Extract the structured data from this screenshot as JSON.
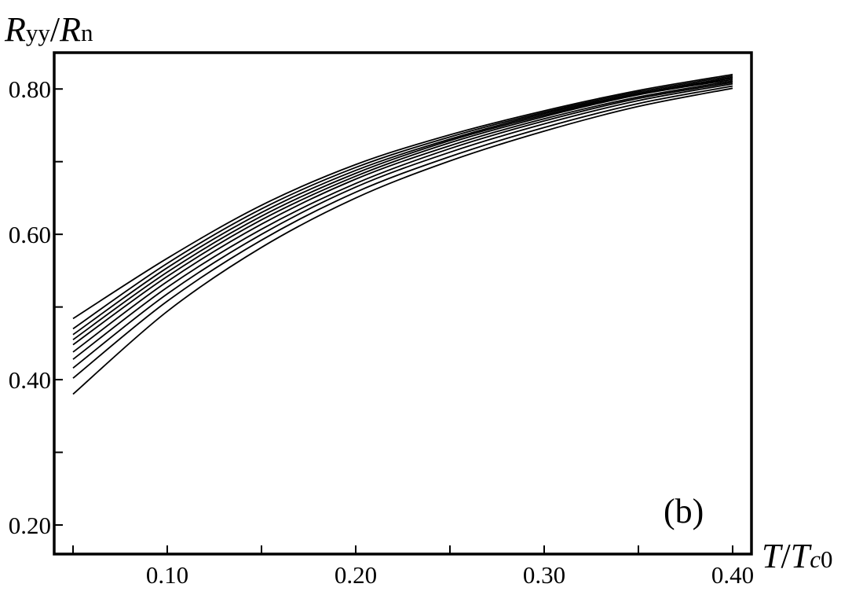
{
  "chart_data": {
    "type": "line",
    "title": "",
    "ylabel_parts": {
      "r1": "R",
      "s1": "yy",
      "slash": "/",
      "r2": "R",
      "s2": "n"
    },
    "xlabel_parts": {
      "t": "T",
      "slash": "/",
      "tc": "T",
      "sub_c": "c",
      "sub_0": "0"
    },
    "panel_label": "(b)",
    "xlim": [
      0.04,
      0.41
    ],
    "ylim": [
      0.16,
      0.85
    ],
    "x_ticks": [
      {
        "value": 0.05,
        "label": ""
      },
      {
        "value": 0.1,
        "label": "0.10"
      },
      {
        "value": 0.15,
        "label": ""
      },
      {
        "value": 0.2,
        "label": "0.20"
      },
      {
        "value": 0.25,
        "label": ""
      },
      {
        "value": 0.3,
        "label": "0.30"
      },
      {
        "value": 0.35,
        "label": ""
      },
      {
        "value": 0.4,
        "label": "0.40"
      }
    ],
    "y_ticks": [
      {
        "value": 0.2,
        "label": "0.20"
      },
      {
        "value": 0.3,
        "label": ""
      },
      {
        "value": 0.4,
        "label": "0.40"
      },
      {
        "value": 0.5,
        "label": ""
      },
      {
        "value": 0.6,
        "label": "0.60"
      },
      {
        "value": 0.7,
        "label": ""
      },
      {
        "value": 0.8,
        "label": "0.80"
      }
    ],
    "grid": false,
    "legend": "none",
    "line_color": "#000000",
    "x": [
      0.05,
      0.1,
      0.15,
      0.2,
      0.25,
      0.3,
      0.35,
      0.4
    ],
    "series": [
      {
        "values": [
          0.484,
          0.567,
          0.64,
          0.696,
          0.737,
          0.77,
          0.798,
          0.82
        ]
      },
      {
        "values": [
          0.47,
          0.56,
          0.635,
          0.692,
          0.734,
          0.768,
          0.796,
          0.818
        ]
      },
      {
        "values": [
          0.462,
          0.554,
          0.63,
          0.688,
          0.731,
          0.766,
          0.794,
          0.816
        ]
      },
      {
        "values": [
          0.455,
          0.548,
          0.625,
          0.684,
          0.729,
          0.764,
          0.793,
          0.815
        ]
      },
      {
        "values": [
          0.448,
          0.542,
          0.62,
          0.68,
          0.726,
          0.762,
          0.792,
          0.813
        ]
      },
      {
        "values": [
          0.438,
          0.535,
          0.614,
          0.676,
          0.722,
          0.759,
          0.789,
          0.811
        ]
      },
      {
        "values": [
          0.428,
          0.527,
          0.607,
          0.67,
          0.718,
          0.756,
          0.787,
          0.809
        ]
      },
      {
        "values": [
          0.416,
          0.518,
          0.6,
          0.665,
          0.713,
          0.752,
          0.784,
          0.807
        ]
      },
      {
        "values": [
          0.402,
          0.508,
          0.592,
          0.658,
          0.707,
          0.747,
          0.78,
          0.804
        ]
      },
      {
        "values": [
          0.38,
          0.494,
          0.582,
          0.65,
          0.701,
          0.742,
          0.776,
          0.801
        ]
      }
    ]
  }
}
